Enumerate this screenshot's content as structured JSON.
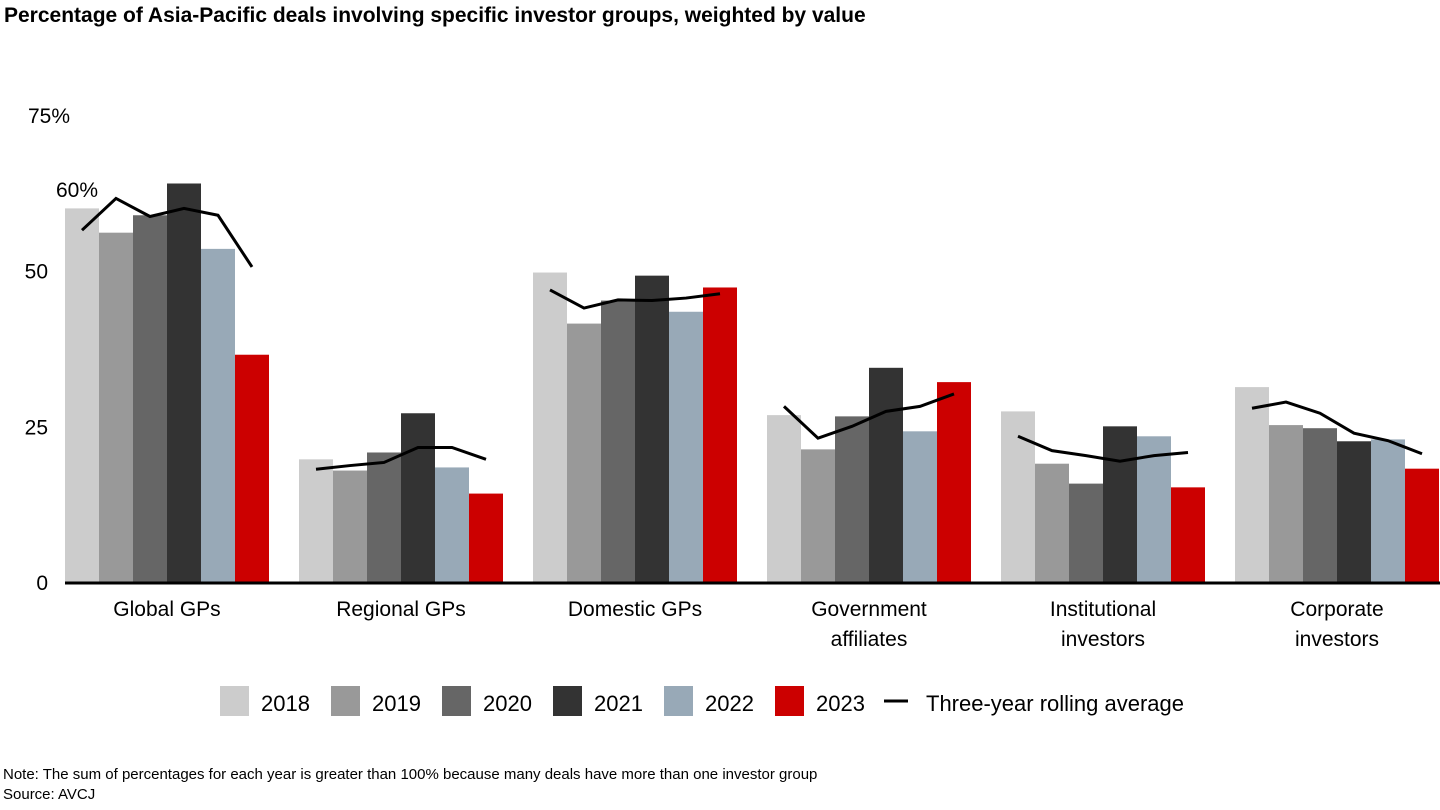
{
  "chart_data": {
    "type": "bar",
    "title": "Percentage of Asia-Pacific deals involving specific investor groups, weighted by value",
    "categories": [
      "Global GPs",
      "Regional GPs",
      "Domestic GPs",
      "Government affiliates",
      "Institutional investors",
      "Corporate investors"
    ],
    "category_lines": [
      [
        "Global GPs"
      ],
      [
        "Regional GPs"
      ],
      [
        "Domestic GPs"
      ],
      [
        "Government",
        "affiliates"
      ],
      [
        "Institutional",
        "investors"
      ],
      [
        "Corporate",
        "investors"
      ]
    ],
    "ylim": [
      0,
      75
    ],
    "yticks": [
      0,
      25,
      50,
      75
    ],
    "ytick_labels": [
      "0",
      "25",
      "50",
      "75%"
    ],
    "annotation": "60%",
    "grid": false,
    "legend_placement": "bottom",
    "series": [
      {
        "name": "2018",
        "color": "#cccccc",
        "values": [
          60,
          19.7,
          49.7,
          26.8,
          27.4,
          31.3
        ]
      },
      {
        "name": "2019",
        "color": "#999999",
        "values": [
          56.1,
          17.9,
          41.5,
          21.3,
          19.0,
          25.2
        ]
      },
      {
        "name": "2020",
        "color": "#666666",
        "values": [
          58.9,
          20.8,
          45.2,
          26.6,
          15.8,
          24.7
        ]
      },
      {
        "name": "2021",
        "color": "#333333",
        "values": [
          64.0,
          27.1,
          49.2,
          34.4,
          25.0,
          22.6
        ]
      },
      {
        "name": "2022",
        "color": "#98a9b7",
        "values": [
          53.5,
          18.4,
          43.4,
          24.2,
          23.4,
          22.9
        ]
      },
      {
        "name": "2023",
        "color": "#cc0000",
        "values": [
          36.5,
          14.2,
          47.3,
          32.1,
          15.2,
          18.2
        ]
      }
    ],
    "line_series": {
      "name": "Three-year rolling average",
      "color": "#000000",
      "values": [
        [
          56.5,
          61.6,
          58.7,
          60.0,
          58.9,
          50.6
        ],
        [
          18.1,
          18.7,
          19.2,
          21.6,
          21.6,
          19.7
        ],
        [
          46.9,
          44.0,
          45.3,
          45.2,
          45.6,
          46.3
        ],
        [
          28.2,
          23.1,
          25.0,
          27.4,
          28.2,
          30.2
        ],
        [
          23.4,
          21.1,
          20.3,
          19.4,
          20.3,
          20.8
        ],
        [
          27.9,
          28.9,
          27.1,
          23.9,
          22.7,
          20.6
        ]
      ]
    }
  },
  "note": "Note: The sum of percentages for each year is greater than 100% because many deals have more than one investor group",
  "source": "Source: AVCJ"
}
